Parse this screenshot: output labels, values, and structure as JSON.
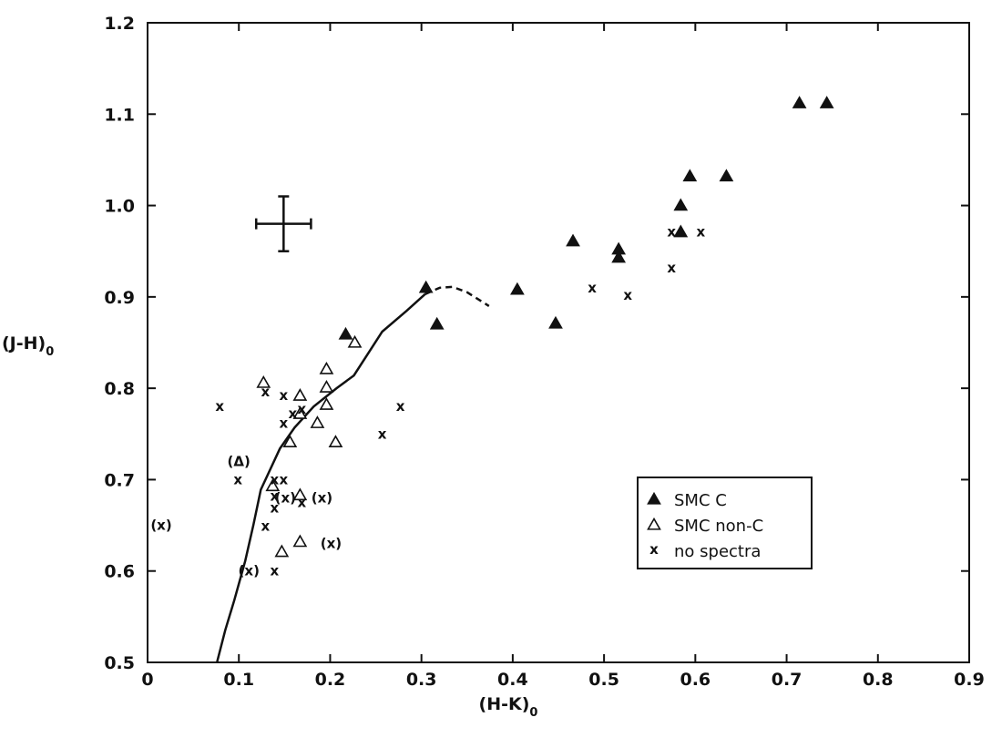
{
  "chart_data": {
    "type": "scatter",
    "title": "",
    "xlabel": "(H-K)",
    "xlabel_subscript": "0",
    "ylabel": "(J-H)",
    "ylabel_subscript": "0",
    "xlim": [
      0,
      0.9
    ],
    "ylim": [
      0.5,
      1.2
    ],
    "xticks": [
      0,
      0.1,
      0.2,
      0.3,
      0.4,
      0.5,
      0.6,
      0.7,
      0.8,
      0.9
    ],
    "yticks": [
      0.5,
      0.6,
      0.7,
      0.8,
      0.9,
      1.0,
      1.1,
      1.2
    ],
    "xtick_labels": [
      "0",
      "0.1",
      "0.2",
      "0.3",
      "0.4",
      "0.5",
      "0.6",
      "0.7",
      "0.8",
      "0.9"
    ],
    "ytick_labels": [
      "0.5",
      "0.6",
      "0.7",
      "0.8",
      "0.9",
      "1.0",
      "1.1",
      "1.2"
    ],
    "grid": false,
    "legend_position": "lower-right",
    "series": [
      {
        "name": "SMC C",
        "marker": "filled-triangle",
        "points": [
          [
            0.305,
            0.91
          ],
          [
            0.317,
            0.87
          ],
          [
            0.405,
            0.908
          ],
          [
            0.447,
            0.871
          ],
          [
            0.466,
            0.961
          ],
          [
            0.516,
            0.952
          ],
          [
            0.516,
            0.943
          ],
          [
            0.584,
            1.0
          ],
          [
            0.584,
            0.971
          ],
          [
            0.594,
            1.032
          ],
          [
            0.634,
            1.032
          ],
          [
            0.714,
            1.112
          ],
          [
            0.744,
            1.112
          ],
          [
            0.217,
            0.859
          ]
        ]
      },
      {
        "name": "SMC non-C",
        "marker": "open-triangle",
        "points": [
          [
            0.127,
            0.806
          ],
          [
            0.227,
            0.85
          ],
          [
            0.196,
            0.821
          ],
          [
            0.196,
            0.801
          ],
          [
            0.196,
            0.782
          ],
          [
            0.167,
            0.792
          ],
          [
            0.167,
            0.772
          ],
          [
            0.186,
            0.762
          ],
          [
            0.156,
            0.741
          ],
          [
            0.206,
            0.741
          ],
          [
            0.167,
            0.683
          ],
          [
            0.167,
            0.632
          ],
          [
            0.147,
            0.621
          ],
          [
            0.137,
            0.693
          ]
        ]
      },
      {
        "name": "no spectra",
        "marker": "x",
        "points": [
          [
            0.079,
            0.78
          ],
          [
            0.129,
            0.796
          ],
          [
            0.149,
            0.792
          ],
          [
            0.149,
            0.762
          ],
          [
            0.159,
            0.772
          ],
          [
            0.169,
            0.777
          ],
          [
            0.099,
            0.7
          ],
          [
            0.139,
            0.7
          ],
          [
            0.149,
            0.7
          ],
          [
            0.139,
            0.682
          ],
          [
            0.139,
            0.669
          ],
          [
            0.169,
            0.675
          ],
          [
            0.129,
            0.649
          ],
          [
            0.139,
            0.6
          ],
          [
            0.257,
            0.75
          ],
          [
            0.277,
            0.78
          ],
          [
            0.487,
            0.91
          ],
          [
            0.526,
            0.902
          ],
          [
            0.574,
            0.932
          ],
          [
            0.574,
            0.971
          ],
          [
            0.606,
            0.971
          ]
        ]
      },
      {
        "name": "(x)",
        "marker": "x-parenthesized",
        "points": [
          [
            0.015,
            0.65
          ],
          [
            0.111,
            0.6
          ],
          [
            0.151,
            0.68
          ],
          [
            0.191,
            0.68
          ],
          [
            0.201,
            0.63
          ]
        ]
      },
      {
        "name": "(Δ)",
        "marker": "open-triangle-parenthesized",
        "points": [
          [
            0.1,
            0.72
          ]
        ]
      }
    ],
    "curve_solid": [
      [
        0.076,
        0.5
      ],
      [
        0.085,
        0.535
      ],
      [
        0.095,
        0.568
      ],
      [
        0.107,
        0.611
      ],
      [
        0.116,
        0.651
      ],
      [
        0.124,
        0.689
      ],
      [
        0.145,
        0.734
      ],
      [
        0.161,
        0.757
      ],
      [
        0.182,
        0.78
      ],
      [
        0.207,
        0.8
      ],
      [
        0.226,
        0.814
      ],
      [
        0.257,
        0.862
      ],
      [
        0.284,
        0.885
      ],
      [
        0.304,
        0.903
      ]
    ],
    "curve_dashed": [
      [
        0.304,
        0.903
      ],
      [
        0.32,
        0.91
      ],
      [
        0.334,
        0.911
      ],
      [
        0.35,
        0.905
      ],
      [
        0.374,
        0.89
      ]
    ],
    "error_bar": {
      "x": 0.149,
      "y": 0.98,
      "x_err": 0.03,
      "y_err": 0.03
    },
    "legend": {
      "entries": [
        {
          "marker": "filled-triangle",
          "label": "SMC C"
        },
        {
          "marker": "open-triangle",
          "label": "SMC non-C"
        },
        {
          "marker": "x",
          "label": "no spectra"
        }
      ]
    }
  }
}
